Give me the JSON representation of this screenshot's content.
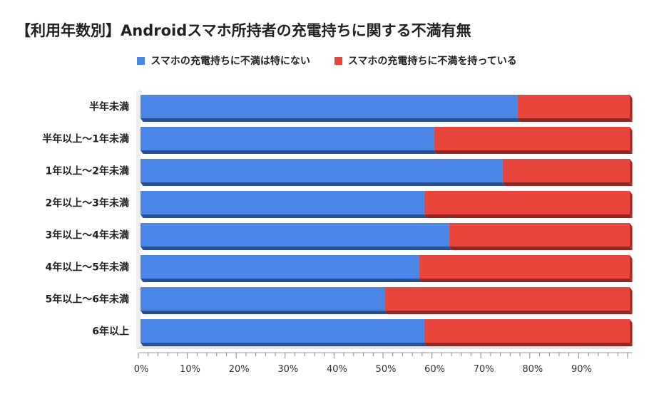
{
  "chart_data": {
    "type": "bar",
    "orientation": "horizontal",
    "stacked": true,
    "percent_stacked": true,
    "title": "【利用年数別】Androidスマホ所持者の充電持ちに関する不満有無",
    "categories": [
      "半年未満",
      "半年以上〜1年未満",
      "1年以上〜2年未満",
      "2年以上〜3年未満",
      "3年以上〜4年未満",
      "4年以上〜5年未満",
      "5年以上〜6年未満",
      "6年以上"
    ],
    "series": [
      {
        "name": "スマホの充電持ちに不満は特にない",
        "color": "#4a86e8",
        "values": [
          77,
          60,
          74,
          58,
          63,
          57,
          50,
          58
        ]
      },
      {
        "name": "スマホの充電持ちに不満を持っている",
        "color": "#e8453c",
        "values": [
          23,
          40,
          26,
          42,
          37,
          43,
          50,
          42
        ]
      }
    ],
    "x_ticks": [
      "0%",
      "10%",
      "20%",
      "30%",
      "40%",
      "50%",
      "60%",
      "70%",
      "80%",
      "90%"
    ],
    "xlim": [
      0,
      100
    ],
    "legend_position": "top",
    "grid": false
  }
}
